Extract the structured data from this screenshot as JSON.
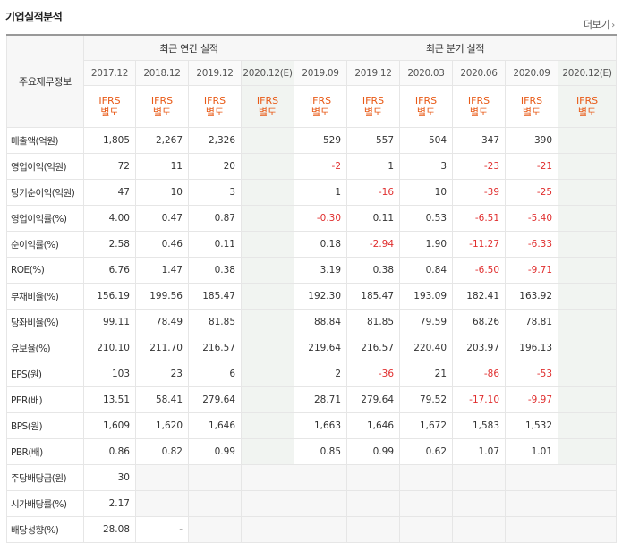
{
  "section_title": "기업실적분석",
  "more_label": "더보기",
  "more_icon": "chevron-right-icon",
  "row_header_label": "주요재무정보",
  "annual_group_label": "최근 연간 실적",
  "quarterly_group_label": "최근 분기 실적",
  "annual_periods": [
    "2017.12",
    "2018.12",
    "2019.12",
    "2020.12(E)"
  ],
  "quarterly_periods": [
    "2019.09",
    "2019.12",
    "2020.03",
    "2020.06",
    "2020.09",
    "2020.12(E)"
  ],
  "ifrs_line1": "IFRS",
  "ifrs_line2": "별도",
  "colors": {
    "negative": "#e02e2e",
    "ifrs": "#e85a17",
    "estimate_bg": "#f1f4f1"
  },
  "rows": [
    {
      "label": "매출액(억원)",
      "annual": [
        "1,805",
        "2,267",
        "2,326",
        ""
      ],
      "quarterly": [
        "529",
        "557",
        "504",
        "347",
        "390",
        ""
      ]
    },
    {
      "label": "영업이익(억원)",
      "annual": [
        "72",
        "11",
        "20",
        ""
      ],
      "quarterly": [
        "-2",
        "1",
        "3",
        "-23",
        "-21",
        ""
      ]
    },
    {
      "label": "당기순이익(억원)",
      "annual": [
        "47",
        "10",
        "3",
        ""
      ],
      "quarterly": [
        "1",
        "-16",
        "10",
        "-39",
        "-25",
        ""
      ]
    },
    {
      "label": "영업이익률(%)",
      "annual": [
        "4.00",
        "0.47",
        "0.87",
        ""
      ],
      "quarterly": [
        "-0.30",
        "0.11",
        "0.53",
        "-6.51",
        "-5.40",
        ""
      ]
    },
    {
      "label": "순이익률(%)",
      "annual": [
        "2.58",
        "0.46",
        "0.11",
        ""
      ],
      "quarterly": [
        "0.18",
        "-2.94",
        "1.90",
        "-11.27",
        "-6.33",
        ""
      ]
    },
    {
      "label": "ROE(%)",
      "annual": [
        "6.76",
        "1.47",
        "0.38",
        ""
      ],
      "quarterly": [
        "3.19",
        "0.38",
        "0.84",
        "-6.50",
        "-9.71",
        ""
      ]
    },
    {
      "label": "부채비율(%)",
      "annual": [
        "156.19",
        "199.56",
        "185.47",
        ""
      ],
      "quarterly": [
        "192.30",
        "185.47",
        "193.09",
        "182.41",
        "163.92",
        ""
      ]
    },
    {
      "label": "당좌비율(%)",
      "annual": [
        "99.11",
        "78.49",
        "81.85",
        ""
      ],
      "quarterly": [
        "88.84",
        "81.85",
        "79.59",
        "68.26",
        "78.81",
        ""
      ]
    },
    {
      "label": "유보율(%)",
      "annual": [
        "210.10",
        "211.70",
        "216.57",
        ""
      ],
      "quarterly": [
        "219.64",
        "216.57",
        "220.40",
        "203.97",
        "196.13",
        ""
      ]
    },
    {
      "label": "EPS(원)",
      "annual": [
        "103",
        "23",
        "6",
        ""
      ],
      "quarterly": [
        "2",
        "-36",
        "21",
        "-86",
        "-53",
        ""
      ]
    },
    {
      "label": "PER(배)",
      "annual": [
        "13.51",
        "58.41",
        "279.64",
        ""
      ],
      "quarterly": [
        "28.71",
        "279.64",
        "79.52",
        "-17.10",
        "-9.97",
        ""
      ]
    },
    {
      "label": "BPS(원)",
      "annual": [
        "1,609",
        "1,620",
        "1,646",
        ""
      ],
      "quarterly": [
        "1,663",
        "1,646",
        "1,672",
        "1,583",
        "1,532",
        ""
      ]
    },
    {
      "label": "PBR(배)",
      "annual": [
        "0.86",
        "0.82",
        "0.99",
        ""
      ],
      "quarterly": [
        "0.85",
        "0.99",
        "0.62",
        "1.07",
        "1.01",
        ""
      ]
    },
    {
      "label": "주당배당금(원)",
      "annual": [
        "30",
        "",
        "",
        ""
      ],
      "quarterly": [
        "",
        "",
        "",
        "",
        "",
        ""
      ],
      "shaded_after": 1
    },
    {
      "label": "시가배당률(%)",
      "annual": [
        "2.17",
        "",
        "",
        ""
      ],
      "quarterly": [
        "",
        "",
        "",
        "",
        "",
        ""
      ],
      "shaded_after": 1
    },
    {
      "label": "배당성향(%)",
      "annual": [
        "28.08",
        "-",
        "",
        ""
      ],
      "quarterly": [
        "",
        "",
        "",
        "",
        "",
        ""
      ],
      "shaded_after": 2
    }
  ],
  "section_starts": [
    3,
    6,
    9,
    13
  ]
}
